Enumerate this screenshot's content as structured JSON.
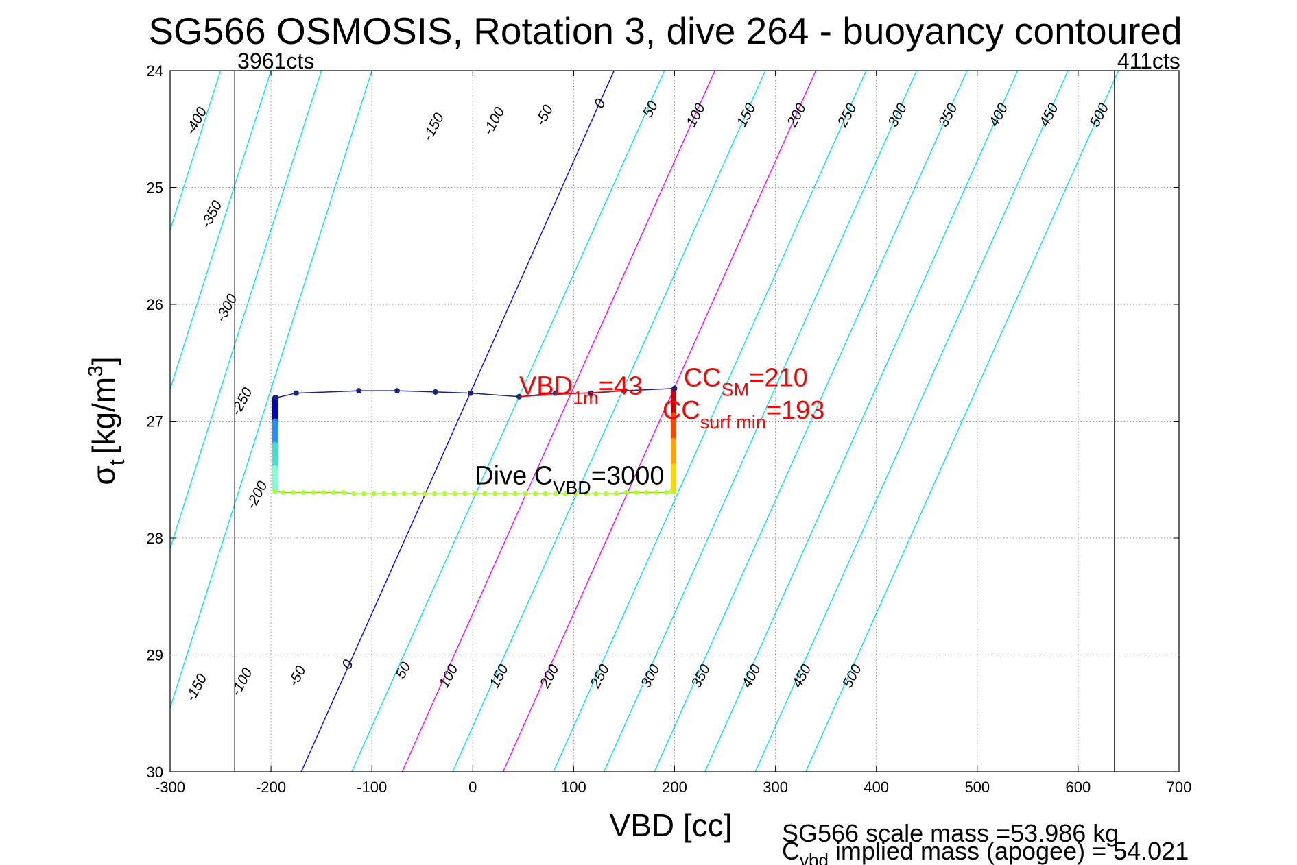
{
  "chart_data": {
    "type": "line",
    "title": "SG566 OSMOSIS, Rotation 3, dive 264 - buoyancy contoured",
    "xlabel": "VBD [cc]",
    "ylabel": {
      "symbol": "σ",
      "sub": "t",
      "unit_pre": "[kg/m",
      "unit_sup": "3",
      "unit_post": "]"
    },
    "xlim": [
      -300,
      700
    ],
    "ylim": [
      24,
      30
    ],
    "y_reversed": true,
    "grid": true,
    "x_ticks": [
      -300,
      -200,
      -100,
      0,
      100,
      200,
      300,
      400,
      500,
      600,
      700
    ],
    "y_ticks": [
      24,
      25,
      26,
      27,
      28,
      29,
      30
    ],
    "x_tick_labels": [
      "-300",
      "-200",
      "-100",
      "0",
      "100",
      "200",
      "300",
      "400",
      "500",
      "600",
      "700"
    ],
    "y_tick_labels": [
      "24",
      "25",
      "26",
      "27",
      "28",
      "29",
      "30"
    ],
    "buoyancy_contours": {
      "levels": [
        -400,
        -350,
        -300,
        -250,
        -200,
        -150,
        -100,
        -50,
        0,
        50,
        100,
        150,
        200,
        250,
        300,
        350,
        400,
        450,
        500
      ],
      "x_at_sigma24": [
        -450,
        -400,
        -350,
        -300,
        -250,
        -200,
        -150,
        -100,
        140,
        190,
        240,
        290,
        340,
        390,
        440,
        490,
        540,
        590,
        640
      ],
      "x_at_sigma30": [
        -670,
        -620,
        -570,
        -520,
        -470,
        -420,
        -370,
        -320,
        -170,
        -120,
        -70,
        -20,
        30,
        80,
        130,
        180,
        230,
        280,
        330
      ],
      "colors": {
        "default": "#00e5ee",
        "zero": "#0000ff",
        "highlight": "#ff00ff"
      },
      "highlight_levels": [
        100,
        200
      ],
      "top_labels": [
        {
          "text": "-400",
          "x": -270,
          "y": 24.45
        },
        {
          "text": "-350",
          "x": -255,
          "y": 25.25
        },
        {
          "text": "-300",
          "x": -240,
          "y": 26.05
        },
        {
          "text": "-250",
          "x": -225,
          "y": 26.85
        },
        {
          "text": "-200",
          "x": -210,
          "y": 27.65
        },
        {
          "text": "-150",
          "x": -270,
          "y": 29.3
        },
        {
          "text": "-100",
          "x": -225,
          "y": 29.25
        },
        {
          "text": "-50",
          "x": -170,
          "y": 29.2
        },
        {
          "text": "0",
          "x": -120,
          "y": 29.1
        },
        {
          "text": "50",
          "x": -65,
          "y": 29.15
        },
        {
          "text": "100",
          "x": -20,
          "y": 29.2
        },
        {
          "text": "150",
          "x": 30,
          "y": 29.2
        },
        {
          "text": "200",
          "x": 80,
          "y": 29.2
        },
        {
          "text": "250",
          "x": 130,
          "y": 29.2
        },
        {
          "text": "300",
          "x": 180,
          "y": 29.2
        },
        {
          "text": "350",
          "x": 230,
          "y": 29.2
        },
        {
          "text": "400",
          "x": 280,
          "y": 29.2
        },
        {
          "text": "450",
          "x": 330,
          "y": 29.2
        },
        {
          "text": "500",
          "x": 380,
          "y": 29.2
        },
        {
          "text": "-150",
          "x": -35,
          "y": 24.5
        },
        {
          "text": "-100",
          "x": 25,
          "y": 24.45
        },
        {
          "text": "-50",
          "x": 75,
          "y": 24.4
        },
        {
          "text": "0",
          "x": 130,
          "y": 24.3
        },
        {
          "text": "50",
          "x": 180,
          "y": 24.35
        },
        {
          "text": "100",
          "x": 225,
          "y": 24.4
        },
        {
          "text": "150",
          "x": 275,
          "y": 24.4
        },
        {
          "text": "200",
          "x": 325,
          "y": 24.4
        },
        {
          "text": "250",
          "x": 375,
          "y": 24.4
        },
        {
          "text": "300",
          "x": 425,
          "y": 24.4
        },
        {
          "text": "350",
          "x": 475,
          "y": 24.4
        },
        {
          "text": "400",
          "x": 525,
          "y": 24.4
        },
        {
          "text": "450",
          "x": 575,
          "y": 24.4
        },
        {
          "text": "500",
          "x": 625,
          "y": 24.4
        }
      ]
    },
    "vertical_markers": [
      {
        "x": -236,
        "label": "3961cts"
      },
      {
        "x": 636,
        "label": "411cts"
      }
    ],
    "series": [
      {
        "x": [
          -195,
          -175,
          -113,
          -75,
          -37,
          -2,
          46,
          82,
          117,
          150,
          200
        ],
        "y": [
          26.8,
          26.76,
          26.74,
          26.74,
          26.75,
          26.76,
          26.79,
          26.76,
          26.76,
          26.74,
          26.72
        ],
        "color": "#1a237e"
      },
      {
        "x": [
          -196,
          -188,
          -178,
          -168,
          -158,
          -148,
          -138,
          -128,
          -118,
          -108,
          -98,
          -88,
          -78,
          -68,
          -58,
          -48,
          -38,
          -28,
          -18,
          -8,
          2,
          12,
          22,
          32,
          42,
          52,
          62,
          72,
          82,
          92,
          102,
          112,
          122,
          132,
          142,
          152,
          162,
          172,
          182,
          192,
          197
        ],
        "y": [
          27.6,
          27.61,
          27.61,
          27.61,
          27.61,
          27.61,
          27.61,
          27.61,
          27.62,
          27.62,
          27.62,
          27.62,
          27.62,
          27.62,
          27.62,
          27.62,
          27.62,
          27.62,
          27.62,
          27.62,
          27.62,
          27.62,
          27.62,
          27.62,
          27.62,
          27.62,
          27.62,
          27.62,
          27.62,
          27.62,
          27.62,
          27.62,
          27.62,
          27.62,
          27.62,
          27.61,
          27.61,
          27.61,
          27.61,
          27.61,
          27.6
        ],
        "color": "#adff2f"
      }
    ],
    "descent_ramp": {
      "x": -196,
      "y_top": 26.8,
      "y_bottom": 27.6,
      "colors": [
        "#0000cc",
        "#1e90ff",
        "#40e0d0",
        "#7fffd4"
      ]
    },
    "ascent_ramp": {
      "x": 199,
      "y_top": 26.73,
      "y_bottom": 27.6,
      "colors": [
        "#cc0000",
        "#ff4500",
        "#ffa500",
        "#ffd700"
      ]
    },
    "annotations": [
      {
        "text": "VBD",
        "sub": "1m",
        "suffix": "=43",
        "x": 46,
        "y": 26.77,
        "color": "#ff0000"
      },
      {
        "text": "CC",
        "sub": "SM",
        "suffix": "=210",
        "x": 209,
        "y": 26.7,
        "color": "#ff0000"
      },
      {
        "text": "CC",
        "sub": "surf min",
        "suffix": "=193",
        "x": 188,
        "y": 26.98,
        "color": "#ff0000"
      },
      {
        "text": "Dive C",
        "sub": "VBD",
        "suffix": "=3000",
        "x": 2,
        "y": 27.54,
        "color": "#000000"
      }
    ],
    "footer": [
      "SG566 scale mass =53.986 kg",
      {
        "pre": "C",
        "sub": "vbd",
        "post": " implied mass (apogee) = 54.021"
      }
    ]
  }
}
